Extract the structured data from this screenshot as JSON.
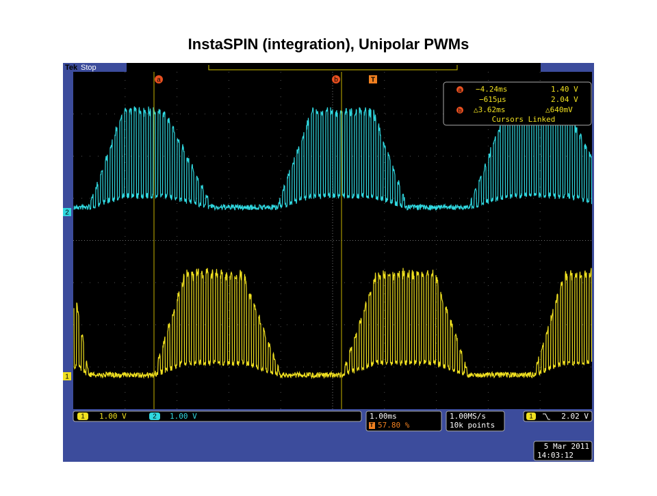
{
  "title": "InstaSPIN (integration), Unipolar PWMs",
  "top_bar": {
    "brand": "Tek",
    "state": "Stop"
  },
  "markers": {
    "cursor_a": "a",
    "cursor_b": "b",
    "trigger": "T"
  },
  "channel_markers": {
    "ch2": "2",
    "ch1": "1"
  },
  "readout": {
    "a_label": "a",
    "a_time": "−4.24ms",
    "a_volt": "1.40 V",
    "mid_time": "−615µs",
    "mid_volt": "2.04 V",
    "b_label": "b",
    "delta_time": "△3.62ms",
    "delta_volt": "△640mV",
    "footer": "Cursors Linked"
  },
  "status": {
    "ch1": {
      "number": "1",
      "scale": "1.00 V"
    },
    "ch2": {
      "number": "2",
      "scale": "1.00 V"
    },
    "timebase": "1.00ms",
    "trigger_position": {
      "icon": "T",
      "value": "57.80 %"
    },
    "sample_rate": "1.00MS/s",
    "record_length": "10k points",
    "trigger": {
      "channel": "1",
      "level": "2.02 V"
    },
    "date": "5 Mar 2011",
    "time": "14:03:12"
  }
}
